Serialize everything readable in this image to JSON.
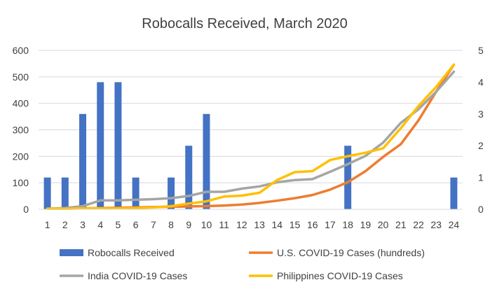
{
  "chart_data": {
    "type": "bar",
    "title": "Robocalls Received, March 2020",
    "categories": [
      "1",
      "2",
      "3",
      "4",
      "5",
      "6",
      "7",
      "8",
      "9",
      "10",
      "11",
      "12",
      "13",
      "14",
      "15",
      "16",
      "17",
      "18",
      "19",
      "20",
      "21",
      "22",
      "23",
      "24"
    ],
    "y_left": {
      "min": 0,
      "max": 600,
      "ticks": [
        "0",
        "100",
        "200",
        "300",
        "400",
        "500",
        "600"
      ]
    },
    "y_right": {
      "min": 0,
      "max": 5,
      "ticks": [
        "0",
        "1",
        "2",
        "3",
        "4",
        "5"
      ]
    },
    "grid": true,
    "legend_position": "bottom",
    "series": [
      {
        "name": "Robocalls Received",
        "kind": "bar",
        "axis": "left",
        "color": "#4472C4",
        "values": [
          120,
          120,
          360,
          480,
          480,
          120,
          0,
          120,
          240,
          360,
          0,
          0,
          0,
          0,
          0,
          0,
          0,
          240,
          0,
          0,
          0,
          0,
          0,
          120
        ]
      },
      {
        "name": "U.S. COVID-19 Cases (hundreds)",
        "kind": "line",
        "axis": "right",
        "color": "#ED7D31",
        "values": [
          0.02,
          0.02,
          0.03,
          0.04,
          0.05,
          0.06,
          0.07,
          0.08,
          0.09,
          0.1,
          0.12,
          0.15,
          0.2,
          0.27,
          0.35,
          0.45,
          0.62,
          0.85,
          1.2,
          1.65,
          2.05,
          2.8,
          3.7,
          4.55
        ]
      },
      {
        "name": "India COVID-19 Cases",
        "kind": "line",
        "axis": "right",
        "color": "#A5A5A5",
        "values": [
          0.02,
          0.04,
          0.1,
          0.28,
          0.28,
          0.3,
          0.32,
          0.35,
          0.42,
          0.55,
          0.55,
          0.65,
          0.72,
          0.85,
          0.92,
          0.95,
          1.18,
          1.42,
          1.68,
          2.1,
          2.72,
          3.15,
          3.7,
          4.33
        ]
      },
      {
        "name": "Philippines COVID-19 Cases",
        "kind": "line",
        "axis": "right",
        "color": "#FFC000",
        "values": [
          0.02,
          0.02,
          0.03,
          0.03,
          0.03,
          0.04,
          0.06,
          0.1,
          0.18,
          0.25,
          0.4,
          0.43,
          0.52,
          0.92,
          1.17,
          1.2,
          1.55,
          1.67,
          1.78,
          1.92,
          2.55,
          3.25,
          3.85,
          4.55
        ]
      }
    ]
  }
}
